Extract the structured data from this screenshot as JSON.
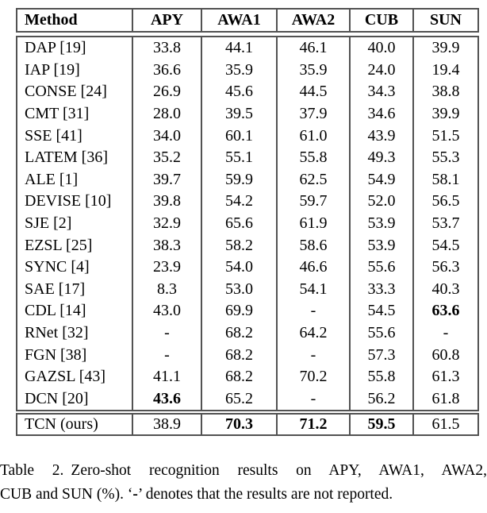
{
  "table": {
    "columns": [
      "Method",
      "APY",
      "AWA1",
      "AWA2",
      "CUB",
      "SUN"
    ],
    "rows": [
      {
        "group": "body",
        "method": "DAP [19]",
        "values": [
          "33.8",
          "44.1",
          "46.1",
          "40.0",
          "39.9"
        ],
        "bold": [
          false,
          false,
          false,
          false,
          false
        ]
      },
      {
        "group": "body",
        "method": "IAP [19]",
        "values": [
          "36.6",
          "35.9",
          "35.9",
          "24.0",
          "19.4"
        ],
        "bold": [
          false,
          false,
          false,
          false,
          false
        ]
      },
      {
        "group": "body",
        "method": "CONSE [24]",
        "values": [
          "26.9",
          "45.6",
          "44.5",
          "34.3",
          "38.8"
        ],
        "bold": [
          false,
          false,
          false,
          false,
          false
        ]
      },
      {
        "group": "body",
        "method": "CMT [31]",
        "values": [
          "28.0",
          "39.5",
          "37.9",
          "34.6",
          "39.9"
        ],
        "bold": [
          false,
          false,
          false,
          false,
          false
        ]
      },
      {
        "group": "body",
        "method": "SSE [41]",
        "values": [
          "34.0",
          "60.1",
          "61.0",
          "43.9",
          "51.5"
        ],
        "bold": [
          false,
          false,
          false,
          false,
          false
        ]
      },
      {
        "group": "body",
        "method": "LATEM [36]",
        "values": [
          "35.2",
          "55.1",
          "55.8",
          "49.3",
          "55.3"
        ],
        "bold": [
          false,
          false,
          false,
          false,
          false
        ]
      },
      {
        "group": "body",
        "method": "ALE [1]",
        "values": [
          "39.7",
          "59.9",
          "62.5",
          "54.9",
          "58.1"
        ],
        "bold": [
          false,
          false,
          false,
          false,
          false
        ]
      },
      {
        "group": "body",
        "method": "DEVISE [10]",
        "values": [
          "39.8",
          "54.2",
          "59.7",
          "52.0",
          "56.5"
        ],
        "bold": [
          false,
          false,
          false,
          false,
          false
        ]
      },
      {
        "group": "body",
        "method": "SJE [2]",
        "values": [
          "32.9",
          "65.6",
          "61.9",
          "53.9",
          "53.7"
        ],
        "bold": [
          false,
          false,
          false,
          false,
          false
        ]
      },
      {
        "group": "body",
        "method": "EZSL [25]",
        "values": [
          "38.3",
          "58.2",
          "58.6",
          "53.9",
          "54.5"
        ],
        "bold": [
          false,
          false,
          false,
          false,
          false
        ]
      },
      {
        "group": "body",
        "method": "SYNC [4]",
        "values": [
          "23.9",
          "54.0",
          "46.6",
          "55.6",
          "56.3"
        ],
        "bold": [
          false,
          false,
          false,
          false,
          false
        ]
      },
      {
        "group": "body",
        "method": "SAE [17]",
        "values": [
          "8.3",
          "53.0",
          "54.1",
          "33.3",
          "40.3"
        ],
        "bold": [
          false,
          false,
          false,
          false,
          false
        ]
      },
      {
        "group": "body",
        "method": "CDL [14]",
        "values": [
          "43.0",
          "69.9",
          "-",
          "54.5",
          "63.6"
        ],
        "bold": [
          false,
          false,
          false,
          false,
          true
        ]
      },
      {
        "group": "body",
        "method": "RNet [32]",
        "values": [
          "-",
          "68.2",
          "64.2",
          "55.6",
          "-"
        ],
        "bold": [
          false,
          false,
          false,
          false,
          false
        ]
      },
      {
        "group": "body",
        "method": "FGN [38]",
        "values": [
          "-",
          "68.2",
          "-",
          "57.3",
          "60.8"
        ],
        "bold": [
          false,
          false,
          false,
          false,
          false
        ]
      },
      {
        "group": "body",
        "method": "GAZSL [43]",
        "values": [
          "41.1",
          "68.2",
          "70.2",
          "55.8",
          "61.3"
        ],
        "bold": [
          false,
          false,
          false,
          false,
          false
        ]
      },
      {
        "group": "body",
        "method": "DCN [20]",
        "values": [
          "43.6",
          "65.2",
          "-",
          "56.2",
          "61.8"
        ],
        "bold": [
          true,
          false,
          false,
          false,
          false
        ]
      },
      {
        "group": "final",
        "method": "TCN (ours)",
        "values": [
          "38.9",
          "70.3",
          "71.2",
          "59.5",
          "61.5"
        ],
        "bold": [
          false,
          true,
          true,
          true,
          false
        ]
      }
    ]
  },
  "caption": {
    "label": "Table 2.",
    "line1_rest": "Zero-shot recognition results on APY, AWA1, AWA2,",
    "line2_pre": "CUB and SUN (%). ‘",
    "line2_dash": "-",
    "line2_post": "’ denotes that the results are not reported."
  },
  "colors": {
    "border": "#525252",
    "text": "#000000",
    "background": "#ffffff"
  }
}
